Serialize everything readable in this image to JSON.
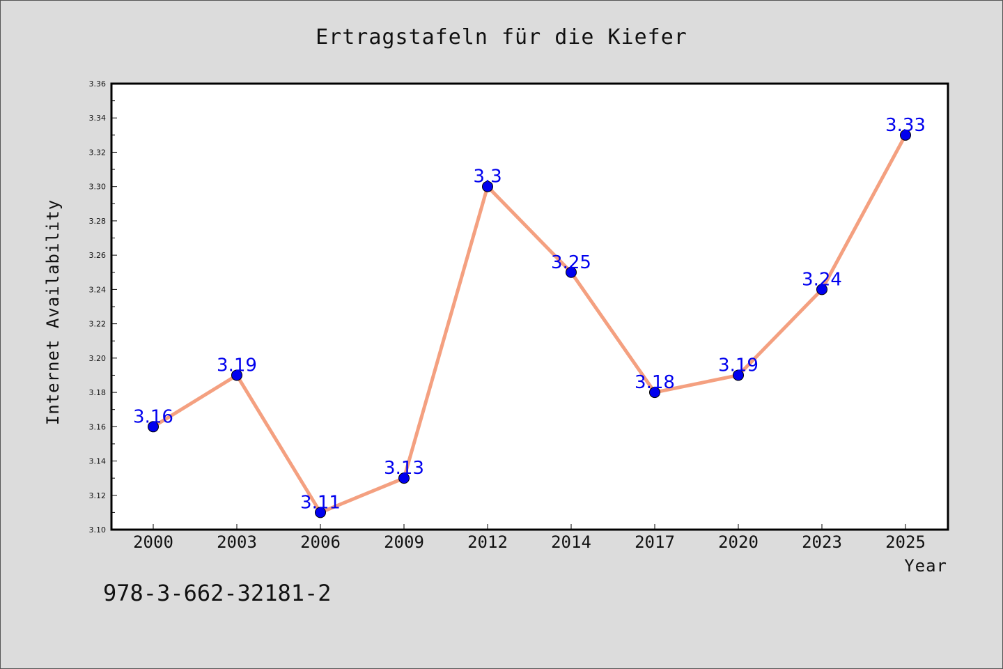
{
  "chart_data": {
    "type": "line",
    "title": "Ertragstafeln für die Kiefer",
    "xlabel": "Year",
    "ylabel": "Internet Availability",
    "categories": [
      "2000",
      "2003",
      "2006",
      "2009",
      "2012",
      "2014",
      "2017",
      "2020",
      "2023",
      "2025"
    ],
    "series": [
      {
        "values": [
          3.16,
          3.19,
          3.11,
          3.13,
          3.3,
          3.25,
          3.18,
          3.19,
          3.24,
          3.33
        ],
        "labels": [
          "3.16",
          "3.19",
          "3.11",
          "3.13",
          "3.3",
          "3.25",
          "3.18",
          "3.19",
          "3.24",
          "3.33"
        ],
        "line_color": "#f4a080",
        "marker_color": "#0000ee",
        "label_color": "#0000ee"
      }
    ],
    "ylim": [
      3.1,
      3.36
    ],
    "yticks": [
      "3.10",
      "3.12",
      "3.14",
      "3.16",
      "3.18",
      "3.20",
      "3.22",
      "3.24",
      "3.26",
      "3.28",
      "3.30",
      "3.32",
      "3.34",
      "3.36"
    ],
    "grid": false,
    "legend": "none"
  },
  "footer": {
    "isbn": "978-3-662-32181-2"
  },
  "colors": {
    "background": "#dcdcdc",
    "plot_area": "#ffffff"
  }
}
